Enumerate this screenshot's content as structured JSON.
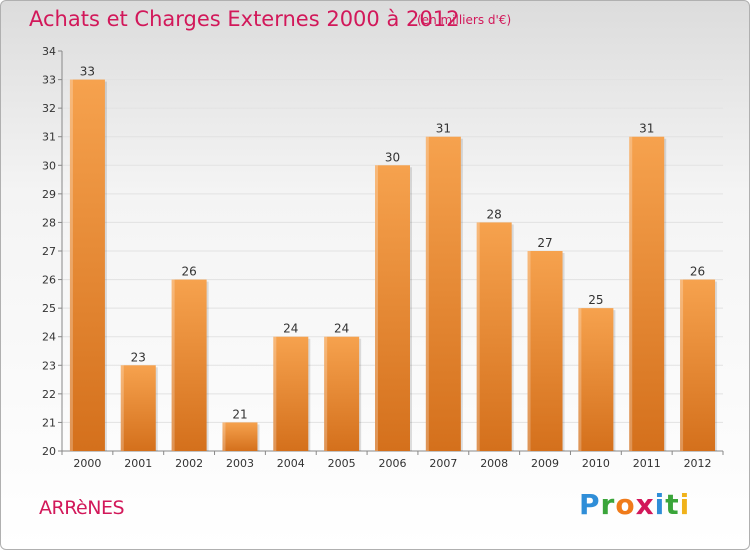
{
  "header": {
    "title": "Achats et Charges Externes 2000 à 2012",
    "unit": "(en milliers d'€)"
  },
  "footer": {
    "commune": "ARRèNES",
    "brand_letters": [
      {
        "ch": "P",
        "color": "#2f8ed8"
      },
      {
        "ch": "r",
        "color": "#3aa53a"
      },
      {
        "ch": "o",
        "color": "#f07b1a"
      },
      {
        "ch": "x",
        "color": "#d2185a"
      },
      {
        "ch": "i",
        "color": "#2f8ed8"
      },
      {
        "ch": "t",
        "color": "#3aa53a"
      },
      {
        "ch": "i",
        "color": "#f0b21a"
      }
    ]
  },
  "chart_data": {
    "type": "bar",
    "categories": [
      "2000",
      "2001",
      "2002",
      "2003",
      "2004",
      "2005",
      "2006",
      "2007",
      "2008",
      "2009",
      "2010",
      "2011",
      "2012"
    ],
    "values": [
      33,
      23,
      26,
      21,
      24,
      24,
      30,
      31,
      28,
      27,
      25,
      31,
      26
    ],
    "ylim": [
      20,
      34
    ],
    "yticks": [
      20,
      21,
      22,
      23,
      24,
      25,
      26,
      27,
      28,
      29,
      30,
      31,
      32,
      33,
      34
    ],
    "grid": true,
    "bar_color_light": "#f6a24e",
    "bar_color_dark": "#d4701c"
  }
}
